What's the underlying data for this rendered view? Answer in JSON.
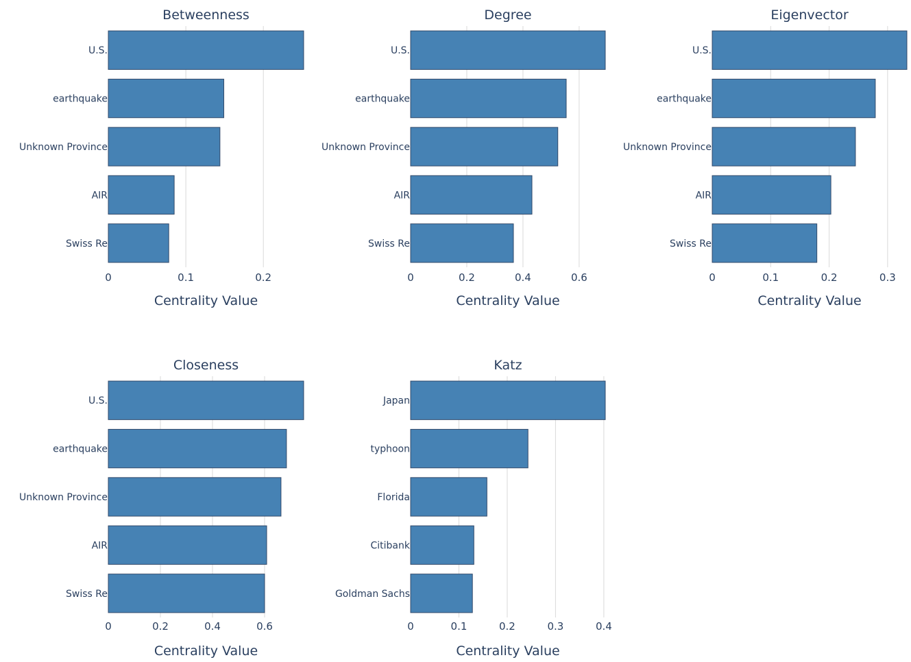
{
  "style": {
    "bar_color": "#4682B4",
    "text_color": "#2a3f5f",
    "grid_color": "#d9d9d9",
    "background": "#ffffff"
  },
  "chart_data": [
    {
      "type": "bar",
      "orientation": "horizontal",
      "title": "Betweenness",
      "xlabel": "Centrality Value",
      "ylabel": "",
      "categories": [
        "U.S.",
        "earthquake",
        "Unknown Province",
        "AIR",
        "Swiss Re"
      ],
      "values": [
        0.252,
        0.149,
        0.144,
        0.085,
        0.078
      ],
      "xlim": [
        0,
        0.252
      ],
      "xticks": [
        0,
        0.1,
        0.2
      ],
      "xtick_labels": [
        "0",
        "0.1",
        "0.2"
      ],
      "grid": true
    },
    {
      "type": "bar",
      "orientation": "horizontal",
      "title": "Degree",
      "xlabel": "Centrality Value",
      "ylabel": "",
      "categories": [
        "U.S.",
        "earthquake",
        "Unknown Province",
        "AIR",
        "Swiss Re"
      ],
      "values": [
        0.693,
        0.554,
        0.524,
        0.432,
        0.366
      ],
      "xlim": [
        0,
        0.693
      ],
      "xticks": [
        0,
        0.2,
        0.4,
        0.6
      ],
      "xtick_labels": [
        "0",
        "0.2",
        "0.4",
        "0.6"
      ],
      "grid": true
    },
    {
      "type": "bar",
      "orientation": "horizontal",
      "title": "Eigenvector",
      "xlabel": "Centrality Value",
      "ylabel": "",
      "categories": [
        "U.S.",
        "earthquake",
        "Unknown Province",
        "AIR",
        "Swiss Re"
      ],
      "values": [
        0.333,
        0.279,
        0.245,
        0.203,
        0.179
      ],
      "xlim": [
        0,
        0.333
      ],
      "xticks": [
        0,
        0.1,
        0.2,
        0.3
      ],
      "xtick_labels": [
        "0",
        "0.1",
        "0.2",
        "0.3"
      ],
      "grid": true
    },
    {
      "type": "bar",
      "orientation": "horizontal",
      "title": "Closeness",
      "xlabel": "Centrality Value",
      "ylabel": "",
      "categories": [
        "U.S.",
        "earthquake",
        "Unknown Province",
        "AIR",
        "Swiss Re"
      ],
      "values": [
        0.75,
        0.684,
        0.663,
        0.608,
        0.6
      ],
      "xlim": [
        0,
        0.75
      ],
      "xticks": [
        0,
        0.2,
        0.4,
        0.6
      ],
      "xtick_labels": [
        "0",
        "0.2",
        "0.4",
        "0.6"
      ],
      "grid": true
    },
    {
      "type": "bar",
      "orientation": "horizontal",
      "title": "Katz",
      "xlabel": "Centrality Value",
      "ylabel": "",
      "categories": [
        "Japan",
        "typhoon",
        "Florida",
        "Citibank",
        "Goldman Sachs"
      ],
      "values": [
        0.403,
        0.243,
        0.158,
        0.131,
        0.128
      ],
      "xlim": [
        0,
        0.403
      ],
      "xticks": [
        0,
        0.1,
        0.2,
        0.3,
        0.4
      ],
      "xtick_labels": [
        "0",
        "0.1",
        "0.2",
        "0.3",
        "0.4"
      ],
      "grid": true
    }
  ]
}
